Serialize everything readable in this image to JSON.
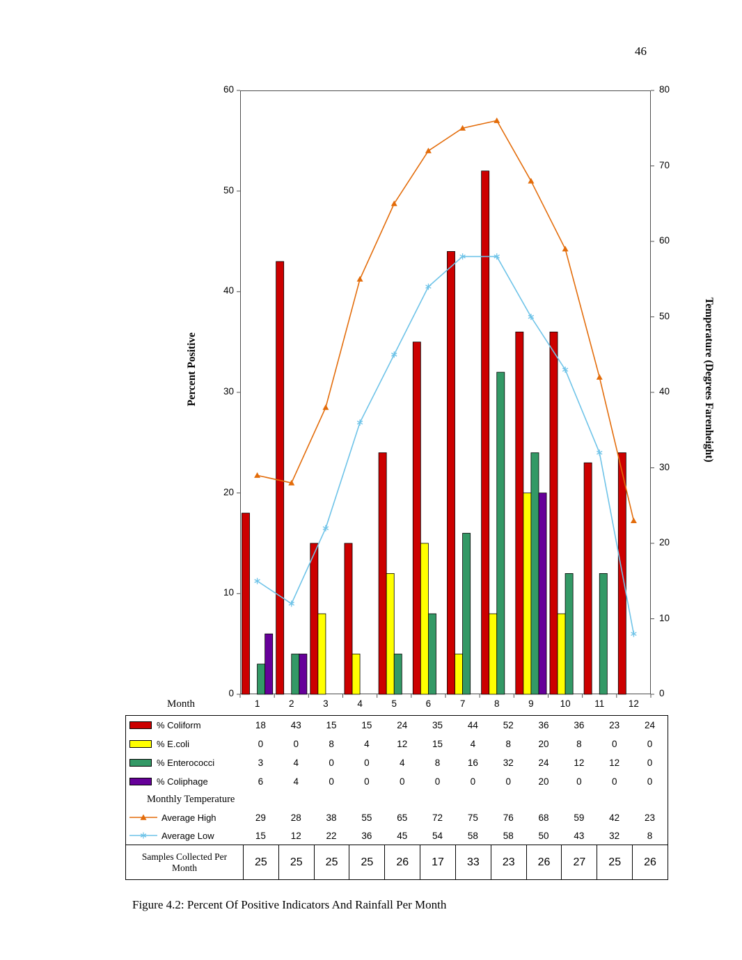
{
  "page": {
    "number": "46",
    "caption": "Figure 4.2: Percent Of Positive Indicators And Rainfall Per Month"
  },
  "chart_data": {
    "type": "bar+line",
    "x_axis_label": "Month",
    "categories": [
      "1",
      "2",
      "3",
      "4",
      "5",
      "6",
      "7",
      "8",
      "9",
      "10",
      "11",
      "12"
    ],
    "left_axis": {
      "title": "Percent Positive",
      "min": 0,
      "max": 60,
      "ticks": [
        0,
        10,
        20,
        30,
        40,
        50,
        60
      ]
    },
    "right_axis": {
      "title": "Temperature (Degrees Farenheight)",
      "min": 0,
      "max": 80,
      "ticks": [
        0,
        10,
        20,
        30,
        40,
        50,
        60,
        70,
        80
      ]
    },
    "bar_series": [
      {
        "name": "% Coliform",
        "color": "#CC0000",
        "values": [
          18,
          43,
          15,
          15,
          24,
          35,
          44,
          52,
          36,
          36,
          23,
          24
        ]
      },
      {
        "name": "% E.coli",
        "color": "#FFFF00",
        "values": [
          0,
          0,
          8,
          4,
          12,
          15,
          4,
          8,
          20,
          8,
          0,
          0
        ]
      },
      {
        "name": "% Enterococci",
        "color": "#339966",
        "values": [
          3,
          4,
          0,
          0,
          4,
          8,
          16,
          32,
          24,
          12,
          12,
          0
        ]
      },
      {
        "name": "% Coliphage",
        "color": "#660099",
        "values": [
          6,
          4,
          0,
          0,
          0,
          0,
          0,
          0,
          20,
          0,
          0,
          0
        ]
      }
    ],
    "line_series": [
      {
        "name": "Average High",
        "color": "#E36C0A",
        "marker": "triangle",
        "values": [
          29,
          28,
          38,
          55,
          65,
          72,
          75,
          76,
          68,
          59,
          42,
          23
        ]
      },
      {
        "name": "Average Low",
        "color": "#6EC3E8",
        "marker": "asterisk",
        "values": [
          15,
          12,
          22,
          36,
          45,
          54,
          58,
          58,
          50,
          43,
          32,
          8
        ]
      }
    ],
    "table": {
      "section_label": "Monthly Temperature",
      "samples_label": "Samples Collected Per Month",
      "samples_values": [
        25,
        25,
        25,
        25,
        26,
        17,
        33,
        23,
        26,
        27,
        25,
        26
      ]
    },
    "legend_position": "table-below",
    "grid": "off"
  }
}
